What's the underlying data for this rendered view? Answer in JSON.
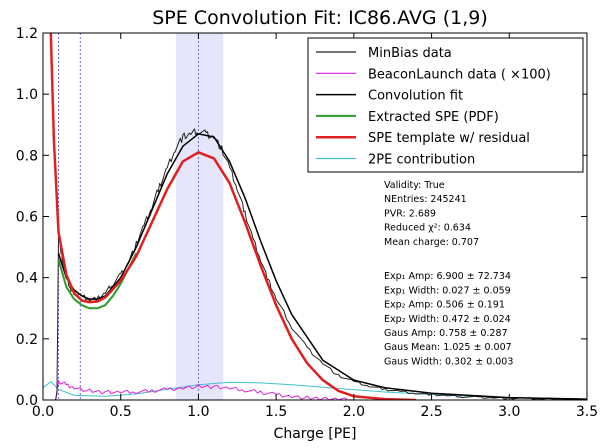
{
  "chart_data": {
    "type": "line",
    "title": "SPE Convolution Fit: IC86.AVG (1,9)",
    "xlabel": "Charge [PE]",
    "ylabel": "",
    "xlim": [
      0.0,
      3.5
    ],
    "ylim": [
      0.0,
      1.2
    ],
    "x_ticks": [
      "0.0",
      "0.5",
      "1.0",
      "1.5",
      "2.0",
      "2.5",
      "3.0",
      "3.5"
    ],
    "y_ticks": [
      "0.0",
      "0.2",
      "0.4",
      "0.6",
      "0.8",
      "1.0",
      "1.2"
    ],
    "grid": false,
    "legend_position": "top-right",
    "band": {
      "x_start": 0.855,
      "x_end": 1.16,
      "color": "#e6e6fa"
    },
    "vlines": [
      {
        "x": 0.1,
        "color": "#7b68ee"
      },
      {
        "x": 0.24,
        "color": "#7b68ee"
      },
      {
        "x": 1.0,
        "color": "#7b68ee"
      }
    ],
    "series": [
      {
        "name": "MinBias data",
        "color": "#222222",
        "x": [
          0.08,
          0.09,
          0.1,
          0.12,
          0.15,
          0.18,
          0.2,
          0.25,
          0.3,
          0.35,
          0.4,
          0.45,
          0.5,
          0.55,
          0.6,
          0.65,
          0.7,
          0.75,
          0.8,
          0.85,
          0.9,
          0.95,
          1.0,
          1.05,
          1.1,
          1.15,
          1.2,
          1.25,
          1.3,
          1.35,
          1.4,
          1.45,
          1.5,
          1.6,
          1.7,
          1.8,
          1.9,
          2.0,
          2.1,
          2.2,
          2.3,
          2.4,
          2.5,
          2.6,
          2.7,
          2.8,
          2.9,
          3.0,
          3.1,
          3.2,
          3.3,
          3.4,
          3.5
        ],
        "y": [
          0.0,
          0.02,
          0.55,
          0.47,
          0.4,
          0.36,
          0.35,
          0.34,
          0.33,
          0.33,
          0.35,
          0.38,
          0.41,
          0.45,
          0.51,
          0.57,
          0.63,
          0.7,
          0.76,
          0.82,
          0.86,
          0.87,
          0.88,
          0.87,
          0.86,
          0.82,
          0.76,
          0.69,
          0.61,
          0.53,
          0.46,
          0.39,
          0.33,
          0.24,
          0.17,
          0.12,
          0.08,
          0.06,
          0.045,
          0.035,
          0.028,
          0.022,
          0.018,
          0.014,
          0.011,
          0.009,
          0.007,
          0.006,
          0.005,
          0.004,
          0.003,
          0.002,
          0.002
        ]
      },
      {
        "name": "BeaconLaunch data ( ×100)",
        "color": "#dd22dd",
        "x": [
          0.08,
          0.1,
          0.15,
          0.2,
          0.3,
          0.4,
          0.5,
          0.6,
          0.7,
          0.8,
          0.9,
          1.0,
          1.1,
          1.2,
          1.3,
          1.4,
          1.5,
          1.6,
          1.7,
          1.8,
          1.9,
          2.0
        ],
        "y": [
          0.0,
          0.06,
          0.05,
          0.04,
          0.03,
          0.025,
          0.025,
          0.027,
          0.03,
          0.035,
          0.04,
          0.045,
          0.043,
          0.038,
          0.032,
          0.025,
          0.018,
          0.012,
          0.007,
          0.004,
          0.002,
          0.0
        ]
      },
      {
        "name": "Convolution fit",
        "color": "#000000",
        "x": [
          0.1,
          0.15,
          0.2,
          0.25,
          0.3,
          0.35,
          0.4,
          0.5,
          0.6,
          0.7,
          0.8,
          0.9,
          1.0,
          1.1,
          1.2,
          1.3,
          1.4,
          1.5,
          1.6,
          1.8,
          2.0,
          2.2,
          2.5,
          3.0,
          3.5
        ],
        "y": [
          0.48,
          0.4,
          0.36,
          0.34,
          0.33,
          0.33,
          0.34,
          0.4,
          0.5,
          0.62,
          0.74,
          0.83,
          0.87,
          0.86,
          0.78,
          0.66,
          0.52,
          0.39,
          0.28,
          0.13,
          0.065,
          0.04,
          0.022,
          0.008,
          0.003
        ]
      },
      {
        "name": "Extracted SPE (PDF)",
        "color": "#2a9d2a",
        "x": [
          0.1,
          0.15,
          0.2,
          0.25,
          0.3,
          0.35,
          0.4,
          0.45,
          0.5,
          0.55,
          0.6
        ],
        "y": [
          0.46,
          0.37,
          0.33,
          0.31,
          0.3,
          0.3,
          0.31,
          0.34,
          0.38,
          0.43,
          0.48
        ]
      },
      {
        "name": "SPE template w/ residual",
        "color": "#e02020",
        "x": [
          0.05,
          0.07,
          0.1,
          0.15,
          0.2,
          0.25,
          0.3,
          0.35,
          0.4,
          0.5,
          0.6,
          0.7,
          0.8,
          0.9,
          1.0,
          1.1,
          1.2,
          1.3,
          1.4,
          1.5,
          1.6,
          1.7,
          1.8,
          1.9,
          2.0,
          2.2,
          2.4
        ],
        "y": [
          1.2,
          0.85,
          0.55,
          0.41,
          0.35,
          0.325,
          0.32,
          0.322,
          0.335,
          0.39,
          0.47,
          0.58,
          0.69,
          0.78,
          0.81,
          0.79,
          0.71,
          0.58,
          0.44,
          0.31,
          0.2,
          0.12,
          0.065,
          0.03,
          0.012,
          0.003,
          0.0
        ]
      },
      {
        "name": "2PE contribution",
        "color": "#40c0d0",
        "x": [
          0.0,
          0.05,
          0.1,
          0.2,
          0.4,
          0.6,
          0.8,
          1.0,
          1.2,
          1.4,
          1.6,
          1.8,
          2.0,
          2.2,
          2.5,
          3.0,
          3.5
        ],
        "y": [
          0.04,
          0.06,
          0.035,
          0.015,
          0.012,
          0.02,
          0.035,
          0.05,
          0.058,
          0.056,
          0.05,
          0.042,
          0.034,
          0.026,
          0.018,
          0.008,
          0.003
        ]
      }
    ],
    "stats": [
      "Validity: True",
      "NEntries: 245241",
      "PVR: 2.689",
      "Reduced χ²: 0.634",
      "Mean charge: 0.707",
      "",
      "Exp₁ Amp: 6.900 ± 72.734",
      "Exp₁ Width: 0.027 ± 0.059",
      "Exp₂ Amp: 0.506 ± 0.191",
      "Exp₂ Width: 0.472 ± 0.024",
      "Gaus Amp: 0.758 ± 0.287",
      "Gaus Mean: 1.025 ± 0.007",
      "Gaus Width: 0.302 ± 0.003"
    ]
  }
}
